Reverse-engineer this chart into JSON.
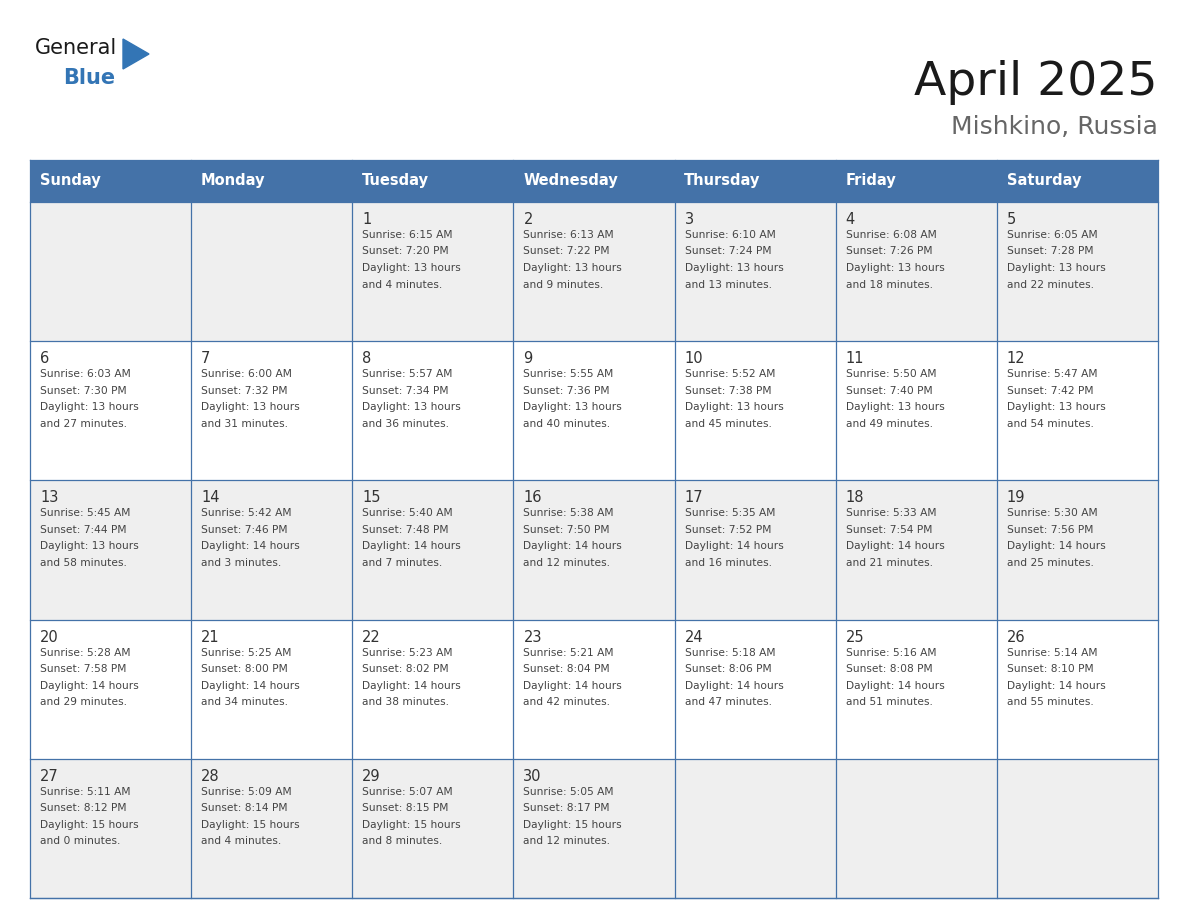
{
  "title": "April 2025",
  "subtitle": "Mishkino, Russia",
  "days_of_week": [
    "Sunday",
    "Monday",
    "Tuesday",
    "Wednesday",
    "Thursday",
    "Friday",
    "Saturday"
  ],
  "header_bg": "#4472A8",
  "header_text_color": "#FFFFFF",
  "cell_bg_odd": "#EFEFEF",
  "cell_bg_even": "#FFFFFF",
  "grid_line_color": "#4472A8",
  "day_number_color": "#333333",
  "cell_text_color": "#444444",
  "title_color": "#1a1a1a",
  "subtitle_color": "#666666",
  "logo_general_color": "#1a1a1a",
  "logo_blue_color": "#3375B5",
  "calendar_data": [
    [
      {
        "day": null,
        "info": ""
      },
      {
        "day": null,
        "info": ""
      },
      {
        "day": 1,
        "info": "Sunrise: 6:15 AM\nSunset: 7:20 PM\nDaylight: 13 hours\nand 4 minutes."
      },
      {
        "day": 2,
        "info": "Sunrise: 6:13 AM\nSunset: 7:22 PM\nDaylight: 13 hours\nand 9 minutes."
      },
      {
        "day": 3,
        "info": "Sunrise: 6:10 AM\nSunset: 7:24 PM\nDaylight: 13 hours\nand 13 minutes."
      },
      {
        "day": 4,
        "info": "Sunrise: 6:08 AM\nSunset: 7:26 PM\nDaylight: 13 hours\nand 18 minutes."
      },
      {
        "day": 5,
        "info": "Sunrise: 6:05 AM\nSunset: 7:28 PM\nDaylight: 13 hours\nand 22 minutes."
      }
    ],
    [
      {
        "day": 6,
        "info": "Sunrise: 6:03 AM\nSunset: 7:30 PM\nDaylight: 13 hours\nand 27 minutes."
      },
      {
        "day": 7,
        "info": "Sunrise: 6:00 AM\nSunset: 7:32 PM\nDaylight: 13 hours\nand 31 minutes."
      },
      {
        "day": 8,
        "info": "Sunrise: 5:57 AM\nSunset: 7:34 PM\nDaylight: 13 hours\nand 36 minutes."
      },
      {
        "day": 9,
        "info": "Sunrise: 5:55 AM\nSunset: 7:36 PM\nDaylight: 13 hours\nand 40 minutes."
      },
      {
        "day": 10,
        "info": "Sunrise: 5:52 AM\nSunset: 7:38 PM\nDaylight: 13 hours\nand 45 minutes."
      },
      {
        "day": 11,
        "info": "Sunrise: 5:50 AM\nSunset: 7:40 PM\nDaylight: 13 hours\nand 49 minutes."
      },
      {
        "day": 12,
        "info": "Sunrise: 5:47 AM\nSunset: 7:42 PM\nDaylight: 13 hours\nand 54 minutes."
      }
    ],
    [
      {
        "day": 13,
        "info": "Sunrise: 5:45 AM\nSunset: 7:44 PM\nDaylight: 13 hours\nand 58 minutes."
      },
      {
        "day": 14,
        "info": "Sunrise: 5:42 AM\nSunset: 7:46 PM\nDaylight: 14 hours\nand 3 minutes."
      },
      {
        "day": 15,
        "info": "Sunrise: 5:40 AM\nSunset: 7:48 PM\nDaylight: 14 hours\nand 7 minutes."
      },
      {
        "day": 16,
        "info": "Sunrise: 5:38 AM\nSunset: 7:50 PM\nDaylight: 14 hours\nand 12 minutes."
      },
      {
        "day": 17,
        "info": "Sunrise: 5:35 AM\nSunset: 7:52 PM\nDaylight: 14 hours\nand 16 minutes."
      },
      {
        "day": 18,
        "info": "Sunrise: 5:33 AM\nSunset: 7:54 PM\nDaylight: 14 hours\nand 21 minutes."
      },
      {
        "day": 19,
        "info": "Sunrise: 5:30 AM\nSunset: 7:56 PM\nDaylight: 14 hours\nand 25 minutes."
      }
    ],
    [
      {
        "day": 20,
        "info": "Sunrise: 5:28 AM\nSunset: 7:58 PM\nDaylight: 14 hours\nand 29 minutes."
      },
      {
        "day": 21,
        "info": "Sunrise: 5:25 AM\nSunset: 8:00 PM\nDaylight: 14 hours\nand 34 minutes."
      },
      {
        "day": 22,
        "info": "Sunrise: 5:23 AM\nSunset: 8:02 PM\nDaylight: 14 hours\nand 38 minutes."
      },
      {
        "day": 23,
        "info": "Sunrise: 5:21 AM\nSunset: 8:04 PM\nDaylight: 14 hours\nand 42 minutes."
      },
      {
        "day": 24,
        "info": "Sunrise: 5:18 AM\nSunset: 8:06 PM\nDaylight: 14 hours\nand 47 minutes."
      },
      {
        "day": 25,
        "info": "Sunrise: 5:16 AM\nSunset: 8:08 PM\nDaylight: 14 hours\nand 51 minutes."
      },
      {
        "day": 26,
        "info": "Sunrise: 5:14 AM\nSunset: 8:10 PM\nDaylight: 14 hours\nand 55 minutes."
      }
    ],
    [
      {
        "day": 27,
        "info": "Sunrise: 5:11 AM\nSunset: 8:12 PM\nDaylight: 15 hours\nand 0 minutes."
      },
      {
        "day": 28,
        "info": "Sunrise: 5:09 AM\nSunset: 8:14 PM\nDaylight: 15 hours\nand 4 minutes."
      },
      {
        "day": 29,
        "info": "Sunrise: 5:07 AM\nSunset: 8:15 PM\nDaylight: 15 hours\nand 8 minutes."
      },
      {
        "day": 30,
        "info": "Sunrise: 5:05 AM\nSunset: 8:17 PM\nDaylight: 15 hours\nand 12 minutes."
      },
      {
        "day": null,
        "info": ""
      },
      {
        "day": null,
        "info": ""
      },
      {
        "day": null,
        "info": ""
      }
    ]
  ]
}
